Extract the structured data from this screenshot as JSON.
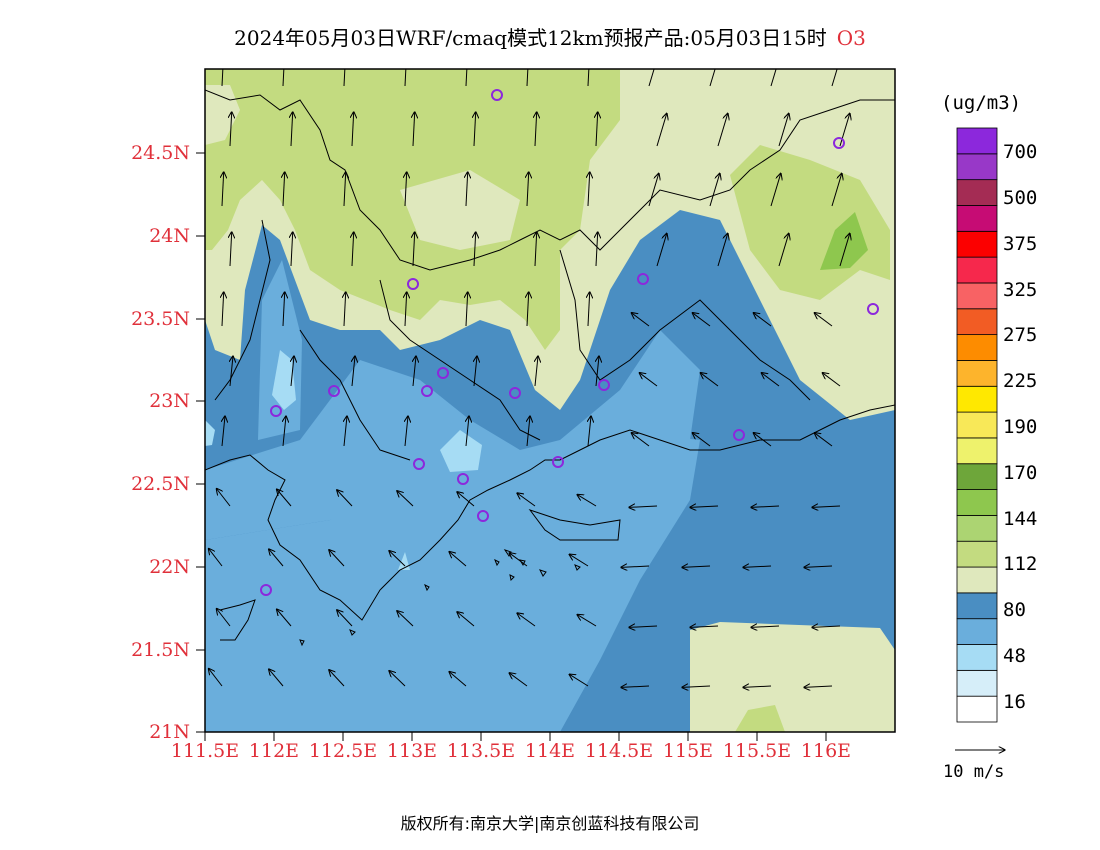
{
  "title": "2024年05月03日WRF/cmaq模式12km预报产品:05月03日15时",
  "species": "O3",
  "y_ticks": [
    "24.5N",
    "24N",
    "23.5N",
    "23N",
    "22.5N",
    "22N",
    "21.5N",
    "21N"
  ],
  "x_ticks": [
    "111.5E",
    "112E",
    "112.5E",
    "113E",
    "113.5E",
    "114E",
    "114.5E",
    "115E",
    "115.5E",
    "116E"
  ],
  "colorbar": {
    "unit": "(ug/m3)",
    "labels": [
      "700",
      "500",
      "375",
      "325",
      "275",
      "225",
      "190",
      "170",
      "144",
      "112",
      "80",
      "48",
      "16"
    ],
    "colors": [
      "#ffffff",
      "#d6eef9",
      "#a6dcf4",
      "#6aaedc",
      "#4a8ec2",
      "#dfe8bd",
      "#c3db80",
      "#acd472",
      "#8ec74e",
      "#6ea63a",
      "#eef26c",
      "#f8e858",
      "#ffe800",
      "#fdb42c",
      "#fd8c00",
      "#f25c24",
      "#f86264",
      "#f6284c",
      "#fc0000",
      "#c60c74",
      "#a42c54",
      "#9838c8",
      "#8c28dc"
    ]
  },
  "wind_scale": "10 m/s",
  "copyright": "版权所有:南京大学|南京创蓝科技有限公司"
}
